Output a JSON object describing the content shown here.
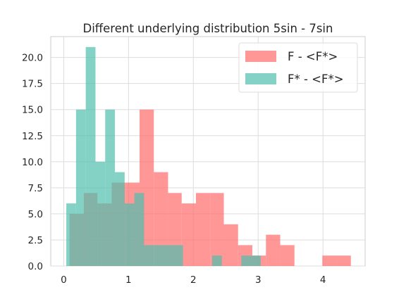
{
  "chart_data": {
    "type": "histogram",
    "title": "Different underlying distribution 5sin - 7sin",
    "xlabel": "",
    "ylabel": "",
    "xlim": [
      -0.2,
      4.65
    ],
    "ylim": [
      0,
      22
    ],
    "xticks": [
      0,
      1,
      2,
      3,
      4
    ],
    "xtick_labels": [
      "0",
      "1",
      "2",
      "3",
      "4"
    ],
    "yticks": [
      0,
      2.5,
      5,
      7.5,
      10,
      12.5,
      15,
      17.5,
      20
    ],
    "ytick_labels": [
      "0.0",
      "2.5",
      "5.0",
      "7.5",
      "10.0",
      "12.5",
      "15.0",
      "17.5",
      "20.0"
    ],
    "grid": true,
    "legend_position": "top-right",
    "series": [
      {
        "name": "F - <F*>",
        "color": "#ff6b6b",
        "bins": [
          {
            "x0": 0.09,
            "x1": 0.31,
            "count": 5
          },
          {
            "x0": 0.31,
            "x1": 0.52,
            "count": 7
          },
          {
            "x0": 0.52,
            "x1": 0.74,
            "count": 6
          },
          {
            "x0": 0.74,
            "x1": 0.96,
            "count": 8
          },
          {
            "x0": 0.96,
            "x1": 1.17,
            "count": 8
          },
          {
            "x0": 1.17,
            "x1": 1.39,
            "count": 15
          },
          {
            "x0": 1.39,
            "x1": 1.61,
            "count": 9
          },
          {
            "x0": 1.61,
            "x1": 1.82,
            "count": 7
          },
          {
            "x0": 1.82,
            "x1": 2.04,
            "count": 6
          },
          {
            "x0": 2.04,
            "x1": 2.26,
            "count": 7
          },
          {
            "x0": 2.26,
            "x1": 2.47,
            "count": 7
          },
          {
            "x0": 2.47,
            "x1": 2.69,
            "count": 4
          },
          {
            "x0": 2.69,
            "x1": 2.91,
            "count": 2
          },
          {
            "x0": 2.91,
            "x1": 3.12,
            "count": 1
          },
          {
            "x0": 3.12,
            "x1": 3.34,
            "count": 3
          },
          {
            "x0": 3.34,
            "x1": 3.56,
            "count": 2
          },
          {
            "x0": 3.56,
            "x1": 3.77,
            "count": 0
          },
          {
            "x0": 3.77,
            "x1": 3.99,
            "count": 0
          },
          {
            "x0": 3.99,
            "x1": 4.21,
            "count": 1
          },
          {
            "x0": 4.21,
            "x1": 4.43,
            "count": 1
          }
        ]
      },
      {
        "name": "F* - <F*>",
        "color": "#4fbfac",
        "bins": [
          {
            "x0": 0.04,
            "x1": 0.19,
            "count": 6
          },
          {
            "x0": 0.19,
            "x1": 0.34,
            "count": 15
          },
          {
            "x0": 0.34,
            "x1": 0.49,
            "count": 21
          },
          {
            "x0": 0.49,
            "x1": 0.64,
            "count": 10
          },
          {
            "x0": 0.64,
            "x1": 0.79,
            "count": 15
          },
          {
            "x0": 0.79,
            "x1": 0.94,
            "count": 9
          },
          {
            "x0": 0.94,
            "x1": 1.09,
            "count": 6
          },
          {
            "x0": 1.09,
            "x1": 1.24,
            "count": 7
          },
          {
            "x0": 1.24,
            "x1": 1.39,
            "count": 2
          },
          {
            "x0": 1.39,
            "x1": 1.54,
            "count": 2
          },
          {
            "x0": 1.54,
            "x1": 1.69,
            "count": 2
          },
          {
            "x0": 1.69,
            "x1": 1.84,
            "count": 2
          },
          {
            "x0": 1.84,
            "x1": 1.99,
            "count": 0
          },
          {
            "x0": 1.99,
            "x1": 2.14,
            "count": 0
          },
          {
            "x0": 2.14,
            "x1": 2.29,
            "count": 0
          },
          {
            "x0": 2.29,
            "x1": 2.44,
            "count": 1
          },
          {
            "x0": 2.44,
            "x1": 2.59,
            "count": 0
          },
          {
            "x0": 2.59,
            "x1": 2.74,
            "count": 0
          },
          {
            "x0": 2.74,
            "x1": 2.89,
            "count": 1
          },
          {
            "x0": 2.89,
            "x1": 3.04,
            "count": 1
          }
        ]
      }
    ]
  }
}
